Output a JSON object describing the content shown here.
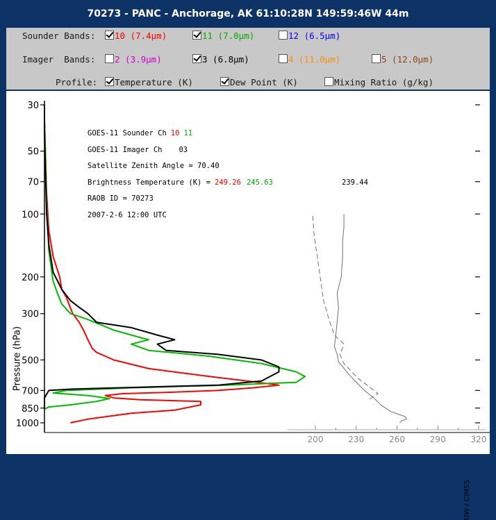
{
  "window_title": "70273 - PANC - Anchorage, AK 61:10:28N 149:59:46W 44m",
  "controls": {
    "sounder_label": "Sounder Bands:",
    "sounder_bands": [
      {
        "text": "10 (7.4µm)",
        "checked": true,
        "color": "#ff0000"
      },
      {
        "text": "11 (7.0µm)",
        "checked": true,
        "color": "#00aa00"
      },
      {
        "text": "12 (6.5µm)",
        "checked": false,
        "color": "#0000ff"
      }
    ],
    "imager_label": "Imager  Bands:",
    "imager_bands": [
      {
        "text": "2 (3.9µm)",
        "checked": false,
        "color": "#cc00cc"
      },
      {
        "text": "3 (6.8µm)",
        "checked": true,
        "color": "#000000"
      },
      {
        "text": "4 (11.0µm)",
        "checked": false,
        "color": "#ff8c00"
      },
      {
        "text": "5 (12.0µm)",
        "checked": false,
        "color": "#8b4513"
      }
    ],
    "profile_label": "Profile:",
    "profile_options": [
      {
        "text": "Temperature (K)",
        "checked": true
      },
      {
        "text": "Dew Point (K)",
        "checked": true
      },
      {
        "text": "Mixing Ratio (g/kg)",
        "checked": false
      }
    ]
  },
  "info": {
    "sounder_line": "GOES-11 Sounder Ch",
    "sounder_ch_a": "10",
    "sounder_ch_b": "11",
    "imager_line": "GOES-11 Imager  Ch",
    "imager_ch": "03",
    "zenith_line": "Satellite Zenith Angle = 70.40",
    "bt_label": "Brightness Temperature (K) =",
    "bt_a": "249.26",
    "bt_b": "245.63",
    "bt_c": "239.44",
    "raob_line": "RAOB ID = 70273",
    "date_line": "2007-2-6 12:00 UTC"
  },
  "watermark": "UW / CIMSS",
  "colors": {
    "ch10": "#ff0000",
    "ch11": "#00bb00",
    "ch3": "#000000",
    "profile": "#707070"
  },
  "chart_data": {
    "type": "line",
    "ylabel": "Pressure (hPa)",
    "y_scale": "log",
    "ylim": [
      1000,
      30
    ],
    "y_ticks": [
      30,
      50,
      70,
      100,
      200,
      300,
      500,
      700,
      850,
      1000
    ],
    "x_ticks": [
      200,
      230,
      260,
      290,
      320
    ],
    "xlim": [
      200,
      320
    ],
    "weighting_functions": [
      {
        "name": "10",
        "color": "#ff0000",
        "points": [
          [
            0.06,
            1000
          ],
          [
            0.1,
            960
          ],
          [
            0.2,
            900
          ],
          [
            0.3,
            870
          ],
          [
            0.36,
            820
          ],
          [
            0.36,
            790
          ],
          [
            0.22,
            775
          ],
          [
            0.16,
            760
          ],
          [
            0.14,
            740
          ],
          [
            0.18,
            725
          ],
          [
            0.28,
            715
          ],
          [
            0.4,
            700
          ],
          [
            0.48,
            680
          ],
          [
            0.54,
            660
          ],
          [
            0.48,
            635
          ],
          [
            0.38,
            600
          ],
          [
            0.24,
            550
          ],
          [
            0.16,
            500
          ],
          [
            0.12,
            460
          ],
          [
            0.11,
            440
          ],
          [
            0.1,
            400
          ],
          [
            0.09,
            360
          ],
          [
            0.08,
            330
          ],
          [
            0.065,
            300
          ],
          [
            0.05,
            250
          ],
          [
            0.04,
            230
          ],
          [
            0.035,
            200
          ],
          [
            0.02,
            160
          ],
          [
            0.01,
            120
          ],
          [
            0.005,
            80
          ],
          [
            0.002,
            50
          ],
          [
            0.0,
            35
          ],
          [
            0.0,
            30
          ]
        ]
      },
      {
        "name": "11",
        "color": "#00bb00",
        "points": [
          [
            0.0,
            860
          ],
          [
            0.01,
            840
          ],
          [
            0.06,
            820
          ],
          [
            0.12,
            790
          ],
          [
            0.15,
            765
          ],
          [
            0.1,
            740
          ],
          [
            0.02,
            720
          ],
          [
            0.05,
            700
          ],
          [
            0.2,
            680
          ],
          [
            0.42,
            660
          ],
          [
            0.58,
            640
          ],
          [
            0.6,
            600
          ],
          [
            0.58,
            570
          ],
          [
            0.5,
            520
          ],
          [
            0.38,
            480
          ],
          [
            0.24,
            450
          ],
          [
            0.2,
            420
          ],
          [
            0.24,
            400
          ],
          [
            0.22,
            390
          ],
          [
            0.16,
            360
          ],
          [
            0.1,
            320
          ],
          [
            0.06,
            300
          ],
          [
            0.04,
            270
          ],
          [
            0.03,
            240
          ],
          [
            0.02,
            210
          ],
          [
            0.01,
            150
          ],
          [
            0.005,
            90
          ],
          [
            0.002,
            50
          ],
          [
            0.0,
            35
          ],
          [
            0.0,
            30
          ]
        ]
      },
      {
        "name": "03",
        "color": "#000000",
        "points": [
          [
            0.0,
            860
          ],
          [
            0.0,
            760
          ],
          [
            0.01,
            700
          ],
          [
            0.06,
            690
          ],
          [
            0.22,
            675
          ],
          [
            0.4,
            660
          ],
          [
            0.5,
            630
          ],
          [
            0.54,
            570
          ],
          [
            0.54,
            540
          ],
          [
            0.5,
            500
          ],
          [
            0.4,
            470
          ],
          [
            0.28,
            450
          ],
          [
            0.26,
            420
          ],
          [
            0.3,
            400
          ],
          [
            0.26,
            380
          ],
          [
            0.2,
            350
          ],
          [
            0.12,
            330
          ],
          [
            0.1,
            300
          ],
          [
            0.08,
            280
          ],
          [
            0.06,
            260
          ],
          [
            0.04,
            230
          ],
          [
            0.02,
            190
          ],
          [
            0.01,
            140
          ],
          [
            0.005,
            100
          ],
          [
            0.002,
            60
          ],
          [
            0.0,
            40
          ],
          [
            0.0,
            30
          ]
        ]
      }
    ],
    "series": [
      {
        "name": "Temperature (K)",
        "style": "solid",
        "points": [
          [
            262,
            1000
          ],
          [
            263,
            980
          ],
          [
            267,
            960
          ],
          [
            266,
            935
          ],
          [
            260,
            905
          ],
          [
            255,
            880
          ],
          [
            248,
            820
          ],
          [
            243,
            760
          ],
          [
            236,
            700
          ],
          [
            226,
            600
          ],
          [
            217,
            510
          ],
          [
            216,
            470
          ],
          [
            214,
            430
          ],
          [
            215,
            380
          ],
          [
            216,
            330
          ],
          [
            217,
            280
          ],
          [
            216,
            240
          ],
          [
            219,
            200
          ],
          [
            220,
            160
          ],
          [
            220,
            135
          ],
          [
            221,
            115
          ],
          [
            221,
            100
          ]
        ]
      },
      {
        "name": "Dew Point (K)",
        "style": "dashed",
        "points": [
          [
            240,
            770
          ],
          [
            246,
            725
          ],
          [
            243,
            700
          ],
          [
            240,
            675
          ],
          [
            231,
            610
          ],
          [
            221,
            520
          ],
          [
            218,
            470
          ],
          [
            221,
            420
          ],
          [
            214,
            380
          ],
          [
            210,
            320
          ],
          [
            206,
            260
          ],
          [
            204,
            210
          ],
          [
            202,
            170
          ],
          [
            199,
            125
          ],
          [
            198,
            100
          ]
        ]
      }
    ]
  }
}
